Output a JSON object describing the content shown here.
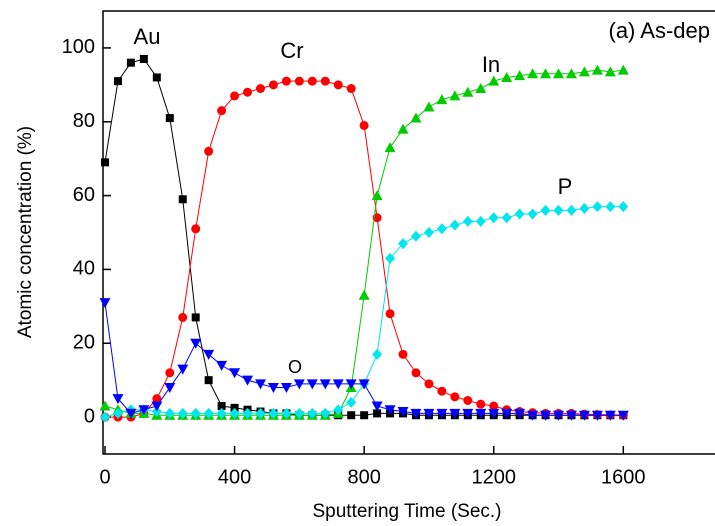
{
  "chart_data": {
    "type": "line",
    "xlabel": "Sputtering Time (Sec.)",
    "ylabel": "Atomic concentration (%)",
    "annotations": [
      "(a) As-dep",
      "Au",
      "Cr",
      "In",
      "P",
      "O"
    ],
    "xlim": [
      0,
      1880
    ],
    "ylim": [
      -10,
      110
    ],
    "xticks": [
      0,
      400,
      800,
      1200,
      1600
    ],
    "yticks": [
      0,
      20,
      40,
      60,
      80,
      100
    ],
    "x": [
      0,
      40,
      80,
      120,
      160,
      200,
      240,
      280,
      320,
      360,
      400,
      440,
      480,
      520,
      560,
      600,
      640,
      680,
      720,
      760,
      800,
      840,
      880,
      920,
      960,
      1000,
      1040,
      1080,
      1120,
      1160,
      1200,
      1240,
      1280,
      1320,
      1360,
      1400,
      1440,
      1480,
      1520,
      1560,
      1600
    ],
    "series": [
      {
        "marker": "square",
        "color": "#000000",
        "values": [
          69,
          91,
          96,
          97,
          92,
          81,
          59,
          27,
          10,
          3,
          2.5,
          2,
          1.5,
          1,
          1,
          0.5,
          0.5,
          0.5,
          0.5,
          0.5,
          0.5,
          1,
          1,
          1,
          0.5,
          0.5,
          0.5,
          0.5,
          0.5,
          0.5,
          0.5,
          0.5,
          0.5,
          0.5,
          0.5,
          0.5,
          0.5,
          0.5,
          0.5,
          0.5,
          0.5
        ]
      },
      {
        "marker": "circle",
        "color": "#ff0000",
        "values": [
          0,
          0,
          0,
          1,
          5,
          12,
          27,
          51,
          72,
          83,
          87,
          88,
          89,
          90,
          91,
          91,
          91,
          91,
          90,
          89,
          79,
          54,
          28,
          17,
          12,
          9,
          7,
          5.5,
          4.5,
          3.5,
          3,
          2,
          1.5,
          1.2,
          1,
          1,
          1,
          0.8,
          0.7,
          0.6,
          0.5
        ]
      },
      {
        "marker": "triangle-up",
        "color": "#00cc00",
        "values": [
          3,
          2,
          1,
          1,
          0.5,
          0.5,
          0.5,
          0.5,
          0.5,
          0.5,
          0.5,
          0.5,
          0.5,
          0.5,
          0.5,
          0.5,
          0.5,
          0.5,
          1,
          8,
          33,
          60,
          73,
          78,
          81,
          84,
          86,
          87,
          88,
          89,
          91,
          92,
          92.5,
          93,
          93,
          93,
          93,
          93.5,
          94,
          93.5,
          94
        ]
      },
      {
        "marker": "diamond",
        "color": "#00e5ee",
        "values": [
          0,
          1,
          2,
          2,
          1.5,
          1,
          1,
          1,
          1,
          1,
          1,
          1,
          1,
          1,
          1,
          1,
          1,
          1,
          2,
          4,
          9,
          17,
          43,
          47,
          49,
          50,
          51,
          52,
          53,
          53,
          54,
          54,
          55,
          55,
          56,
          56,
          56,
          56.5,
          57,
          57,
          57
        ]
      },
      {
        "marker": "triangle-down",
        "color": "#0000ff",
        "values": [
          31,
          5,
          1,
          2,
          3,
          8,
          13,
          20,
          17,
          14,
          12,
          10,
          9,
          8,
          8,
          9,
          9,
          9,
          9,
          9,
          9,
          3,
          2,
          1.5,
          1,
          1,
          1,
          1,
          1,
          1,
          1,
          1,
          1,
          0.5,
          0.5,
          0.5,
          0.5,
          0.5,
          0.5,
          0.5,
          0.5
        ]
      }
    ]
  }
}
